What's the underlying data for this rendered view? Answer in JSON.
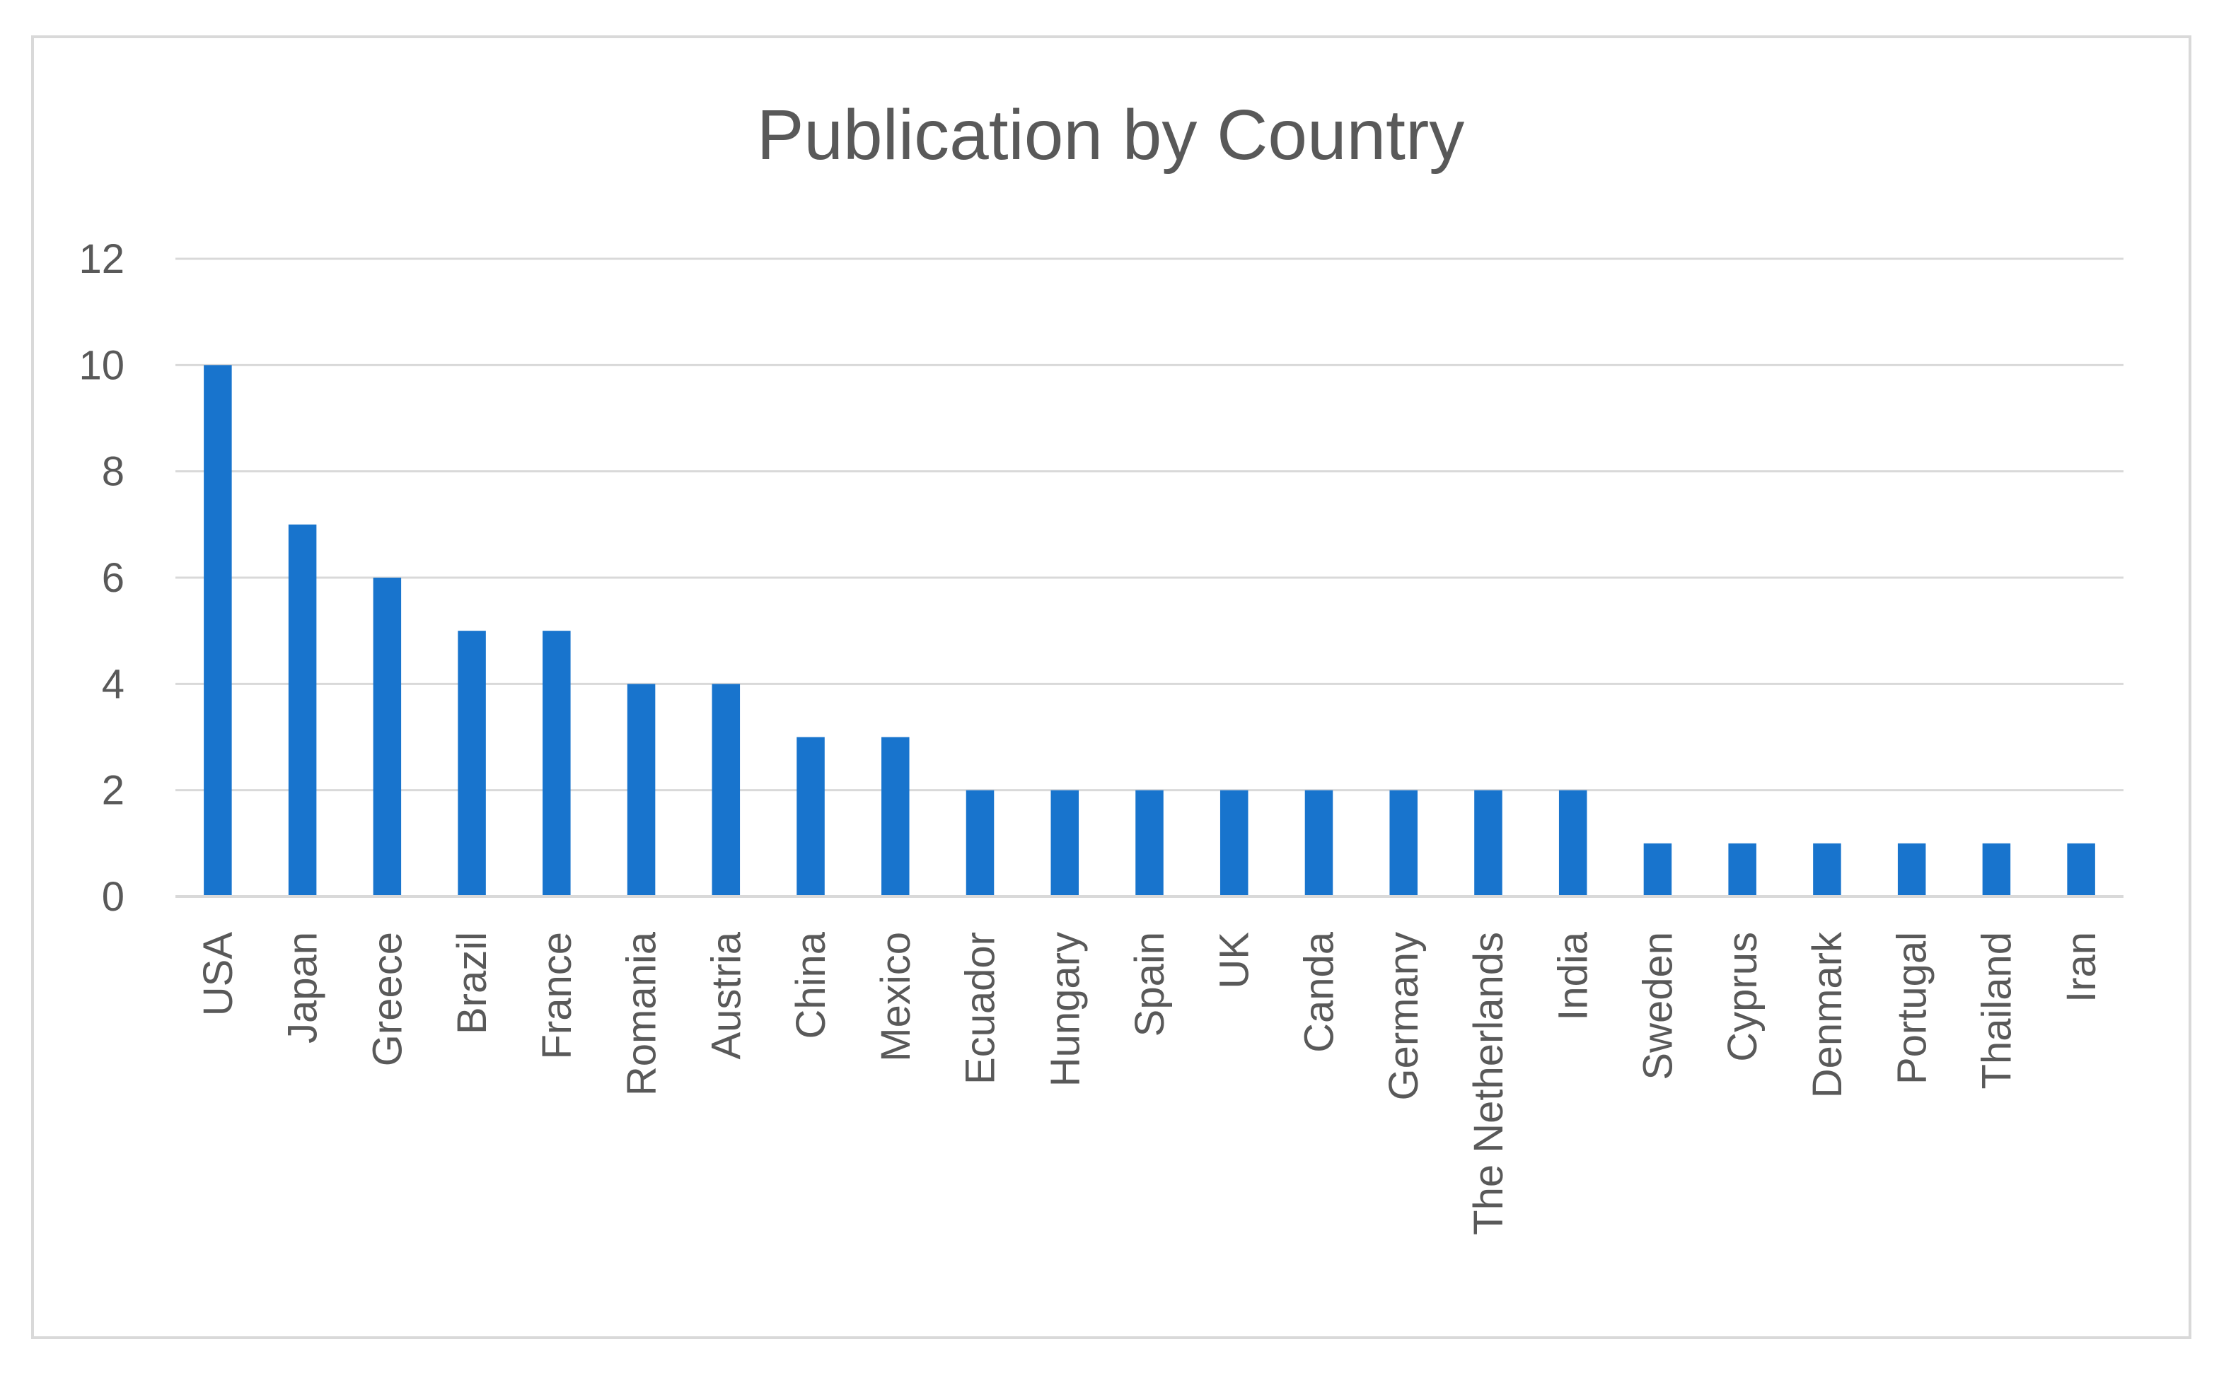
{
  "chart_data": {
    "type": "bar",
    "title": "Publication by Country",
    "xlabel": "",
    "ylabel": "",
    "categories": [
      "USA",
      "Japan",
      "Greece",
      "Brazil",
      "France",
      "Romania",
      "Austria",
      "China",
      "Mexico",
      "Ecuador",
      "Hungary",
      "Spain",
      "UK",
      "Canda",
      "Germany",
      "The Netherlands",
      "India",
      "Sweden",
      "Cyprus",
      "Denmark",
      "Portugal",
      "Thailand",
      "Iran"
    ],
    "values": [
      10,
      7,
      6,
      5,
      5,
      4,
      4,
      3,
      3,
      2,
      2,
      2,
      2,
      2,
      2,
      2,
      2,
      1,
      1,
      1,
      1,
      1,
      1
    ],
    "ylim": [
      0,
      12
    ],
    "yticks": [
      0,
      2,
      4,
      6,
      8,
      10,
      12
    ],
    "grid": true,
    "legend": "none",
    "bar_color": "#1874CD"
  }
}
